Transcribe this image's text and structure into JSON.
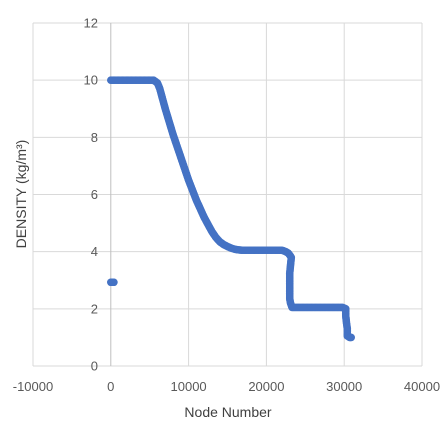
{
  "chart_data": {
    "type": "scatter",
    "xlabel": "Node Number",
    "ylabel": "DENSITY (kg/m³)",
    "xlim": [
      -10000,
      40000
    ],
    "ylim": [
      0,
      12
    ],
    "xticks": [
      -10000,
      0,
      10000,
      20000,
      30000,
      40000
    ],
    "yticks": [
      0,
      2,
      4,
      6,
      8,
      10,
      12
    ],
    "xtick_labels": [
      "-10000",
      "0",
      "10000",
      "20000",
      "30000",
      "40000"
    ],
    "ytick_labels": [
      "0",
      "2",
      "4",
      "6",
      "8",
      "10",
      "12"
    ],
    "grid": true,
    "legend": "none",
    "marker_color": "#4472c4",
    "series": [
      {
        "values_xy": [
          [
            0,
            2.93
          ],
          [
            200,
            2.93
          ],
          [
            400,
            2.93
          ],
          [
            0,
            10.0
          ],
          [
            500,
            10.0
          ],
          [
            1000,
            10.0
          ],
          [
            1500,
            10.0
          ],
          [
            2000,
            10.0
          ],
          [
            2500,
            10.0
          ],
          [
            3000,
            10.0
          ],
          [
            3500,
            10.0
          ],
          [
            4000,
            10.0
          ],
          [
            4500,
            10.0
          ],
          [
            5000,
            10.0
          ],
          [
            5500,
            10.0
          ],
          [
            6000,
            9.9
          ],
          [
            6300,
            9.7
          ],
          [
            6600,
            9.4
          ],
          [
            7000,
            9.0
          ],
          [
            7500,
            8.55
          ],
          [
            8000,
            8.1
          ],
          [
            8500,
            7.7
          ],
          [
            9000,
            7.3
          ],
          [
            9500,
            6.9
          ],
          [
            10000,
            6.5
          ],
          [
            10500,
            6.15
          ],
          [
            11000,
            5.8
          ],
          [
            11500,
            5.5
          ],
          [
            12000,
            5.2
          ],
          [
            12500,
            4.95
          ],
          [
            13000,
            4.7
          ],
          [
            13500,
            4.5
          ],
          [
            14000,
            4.35
          ],
          [
            14500,
            4.25
          ],
          [
            15000,
            4.18
          ],
          [
            15500,
            4.12
          ],
          [
            16000,
            4.08
          ],
          [
            16500,
            4.06
          ],
          [
            17000,
            4.05
          ],
          [
            17500,
            4.05
          ],
          [
            18000,
            4.05
          ],
          [
            18500,
            4.05
          ],
          [
            19000,
            4.05
          ],
          [
            19500,
            4.05
          ],
          [
            20000,
            4.05
          ],
          [
            20500,
            4.05
          ],
          [
            21000,
            4.05
          ],
          [
            21500,
            4.05
          ],
          [
            22000,
            4.05
          ],
          [
            22500,
            4.0
          ],
          [
            22800,
            3.95
          ],
          [
            23000,
            3.88
          ],
          [
            23200,
            3.8
          ],
          [
            23000,
            3.25
          ],
          [
            23000,
            3.2
          ],
          [
            23000,
            2.35
          ],
          [
            23100,
            2.2
          ],
          [
            23300,
            2.05
          ],
          [
            23800,
            2.05
          ],
          [
            24300,
            2.05
          ],
          [
            24800,
            2.05
          ],
          [
            25300,
            2.05
          ],
          [
            25800,
            2.05
          ],
          [
            26300,
            2.05
          ],
          [
            26800,
            2.05
          ],
          [
            27300,
            2.05
          ],
          [
            27800,
            2.05
          ],
          [
            28300,
            2.05
          ],
          [
            28800,
            2.05
          ],
          [
            29300,
            2.05
          ],
          [
            29800,
            2.05
          ],
          [
            30200,
            2.0
          ],
          [
            30200,
            1.75
          ],
          [
            30300,
            1.5
          ],
          [
            30400,
            1.3
          ],
          [
            30400,
            1.05
          ],
          [
            30700,
            1.0
          ],
          [
            30900,
            1.0
          ]
        ]
      }
    ]
  }
}
